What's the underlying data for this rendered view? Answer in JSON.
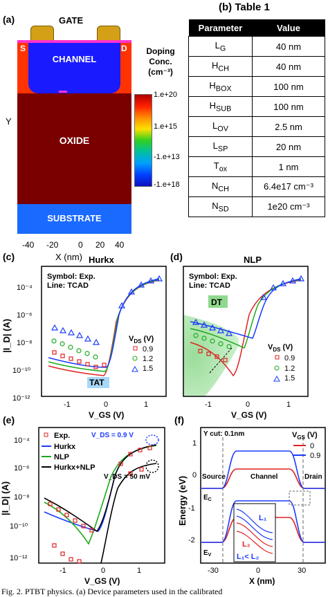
{
  "panel_a": {
    "label": "(a)",
    "layers": {
      "gate": "GATE",
      "source": "S",
      "drain": "D",
      "channel": "CHANNEL",
      "oxide": "OXIDE",
      "substrate": "SUBSTRATE"
    },
    "y_axis_label": "Y",
    "x_axis_label": "X (nm)",
    "x_ticks": [
      "-40",
      "-20",
      "0",
      "20",
      "40"
    ],
    "colorbar_title": [
      "Doping",
      "Conc.",
      "(cm⁻³)"
    ],
    "colorbar_ticks": [
      "1.e+20",
      "1.e+15",
      "-1.e+13",
      "-1.e+18"
    ],
    "colors": {
      "gate": "#d4a017",
      "source_drain": "#ff3300",
      "channel": "#1a1aff",
      "oxide": "#7a0000",
      "substrate": "#1a6aff"
    }
  },
  "panel_b": {
    "label": "(b) Table 1",
    "headers": [
      "Parameter",
      "Value"
    ],
    "rows": [
      {
        "p": "L",
        "sub": "G",
        "v": "40 nm"
      },
      {
        "p": "H",
        "sub": "CH",
        "v": "40 nm"
      },
      {
        "p": "H",
        "sub": "BOX",
        "v": "100 nm"
      },
      {
        "p": "H",
        "sub": "SUB",
        "v": "100 nm"
      },
      {
        "p": "L",
        "sub": "OV",
        "v": "2.5 nm"
      },
      {
        "p": "L",
        "sub": "SP",
        "v": "20 nm"
      },
      {
        "p": "T",
        "sub": "ox",
        "v": "1 nm"
      },
      {
        "p": "N",
        "sub": "CH",
        "v": "6.4e17 cm⁻³"
      },
      {
        "p": "N",
        "sub": "SD",
        "v": "1e20 cm⁻³"
      }
    ]
  },
  "panel_c": {
    "label": "(c)",
    "title": "Hurkx",
    "note1": "Symbol: Exp.",
    "note2": "Line: TCAD",
    "tag": "TAT",
    "legend_title": "V_DS (V)",
    "legend": [
      "0.9",
      "1.2",
      "1.5"
    ]
  },
  "panel_d": {
    "label": "(d)",
    "title": "NLP",
    "note1": "Symbol: Exp.",
    "note2": "Line: TCAD",
    "tag": "DT",
    "legend_title": "V_DS (V)",
    "legend": [
      "0.9",
      "1.2",
      "1.5"
    ]
  },
  "panel_e": {
    "label": "(e)",
    "legend": [
      "Exp.",
      "Hurkx",
      "NLP",
      "Hurkx+NLP"
    ],
    "vds_high": "V_DS = 0.9 V",
    "vds_low": "V_DS = 50 mV"
  },
  "panel_f": {
    "label": "(f)",
    "ycut": "Y cut: 0.1nm",
    "legend_title": "V_GS (V)",
    "legend": [
      "0",
      "0.9"
    ],
    "regions": [
      "Source",
      "Channel",
      "Drain"
    ],
    "ec": "E_C",
    "ev": "E_V",
    "inset": [
      "L₁",
      "L₂",
      "L₁< L₂"
    ],
    "ylabel": "Energy (eV)",
    "xlabel": "X (nm)",
    "x_ticks": [
      "-30",
      "0",
      "30"
    ],
    "y_ticks": [
      "1",
      "0",
      "-1",
      "-2"
    ]
  },
  "iv_axes": {
    "ylabel": "|I_D| (A)",
    "xlabel": "V_GS (V)",
    "x_ticks": [
      "-1",
      "0",
      "1"
    ],
    "y_ticks": [
      "10⁻⁴",
      "10⁻⁶",
      "10⁻⁸",
      "10⁻¹⁰",
      "10⁻¹²"
    ]
  },
  "caption": "Fig. 2. PTBT physics. (a) Device parameters used in the calibrated"
}
